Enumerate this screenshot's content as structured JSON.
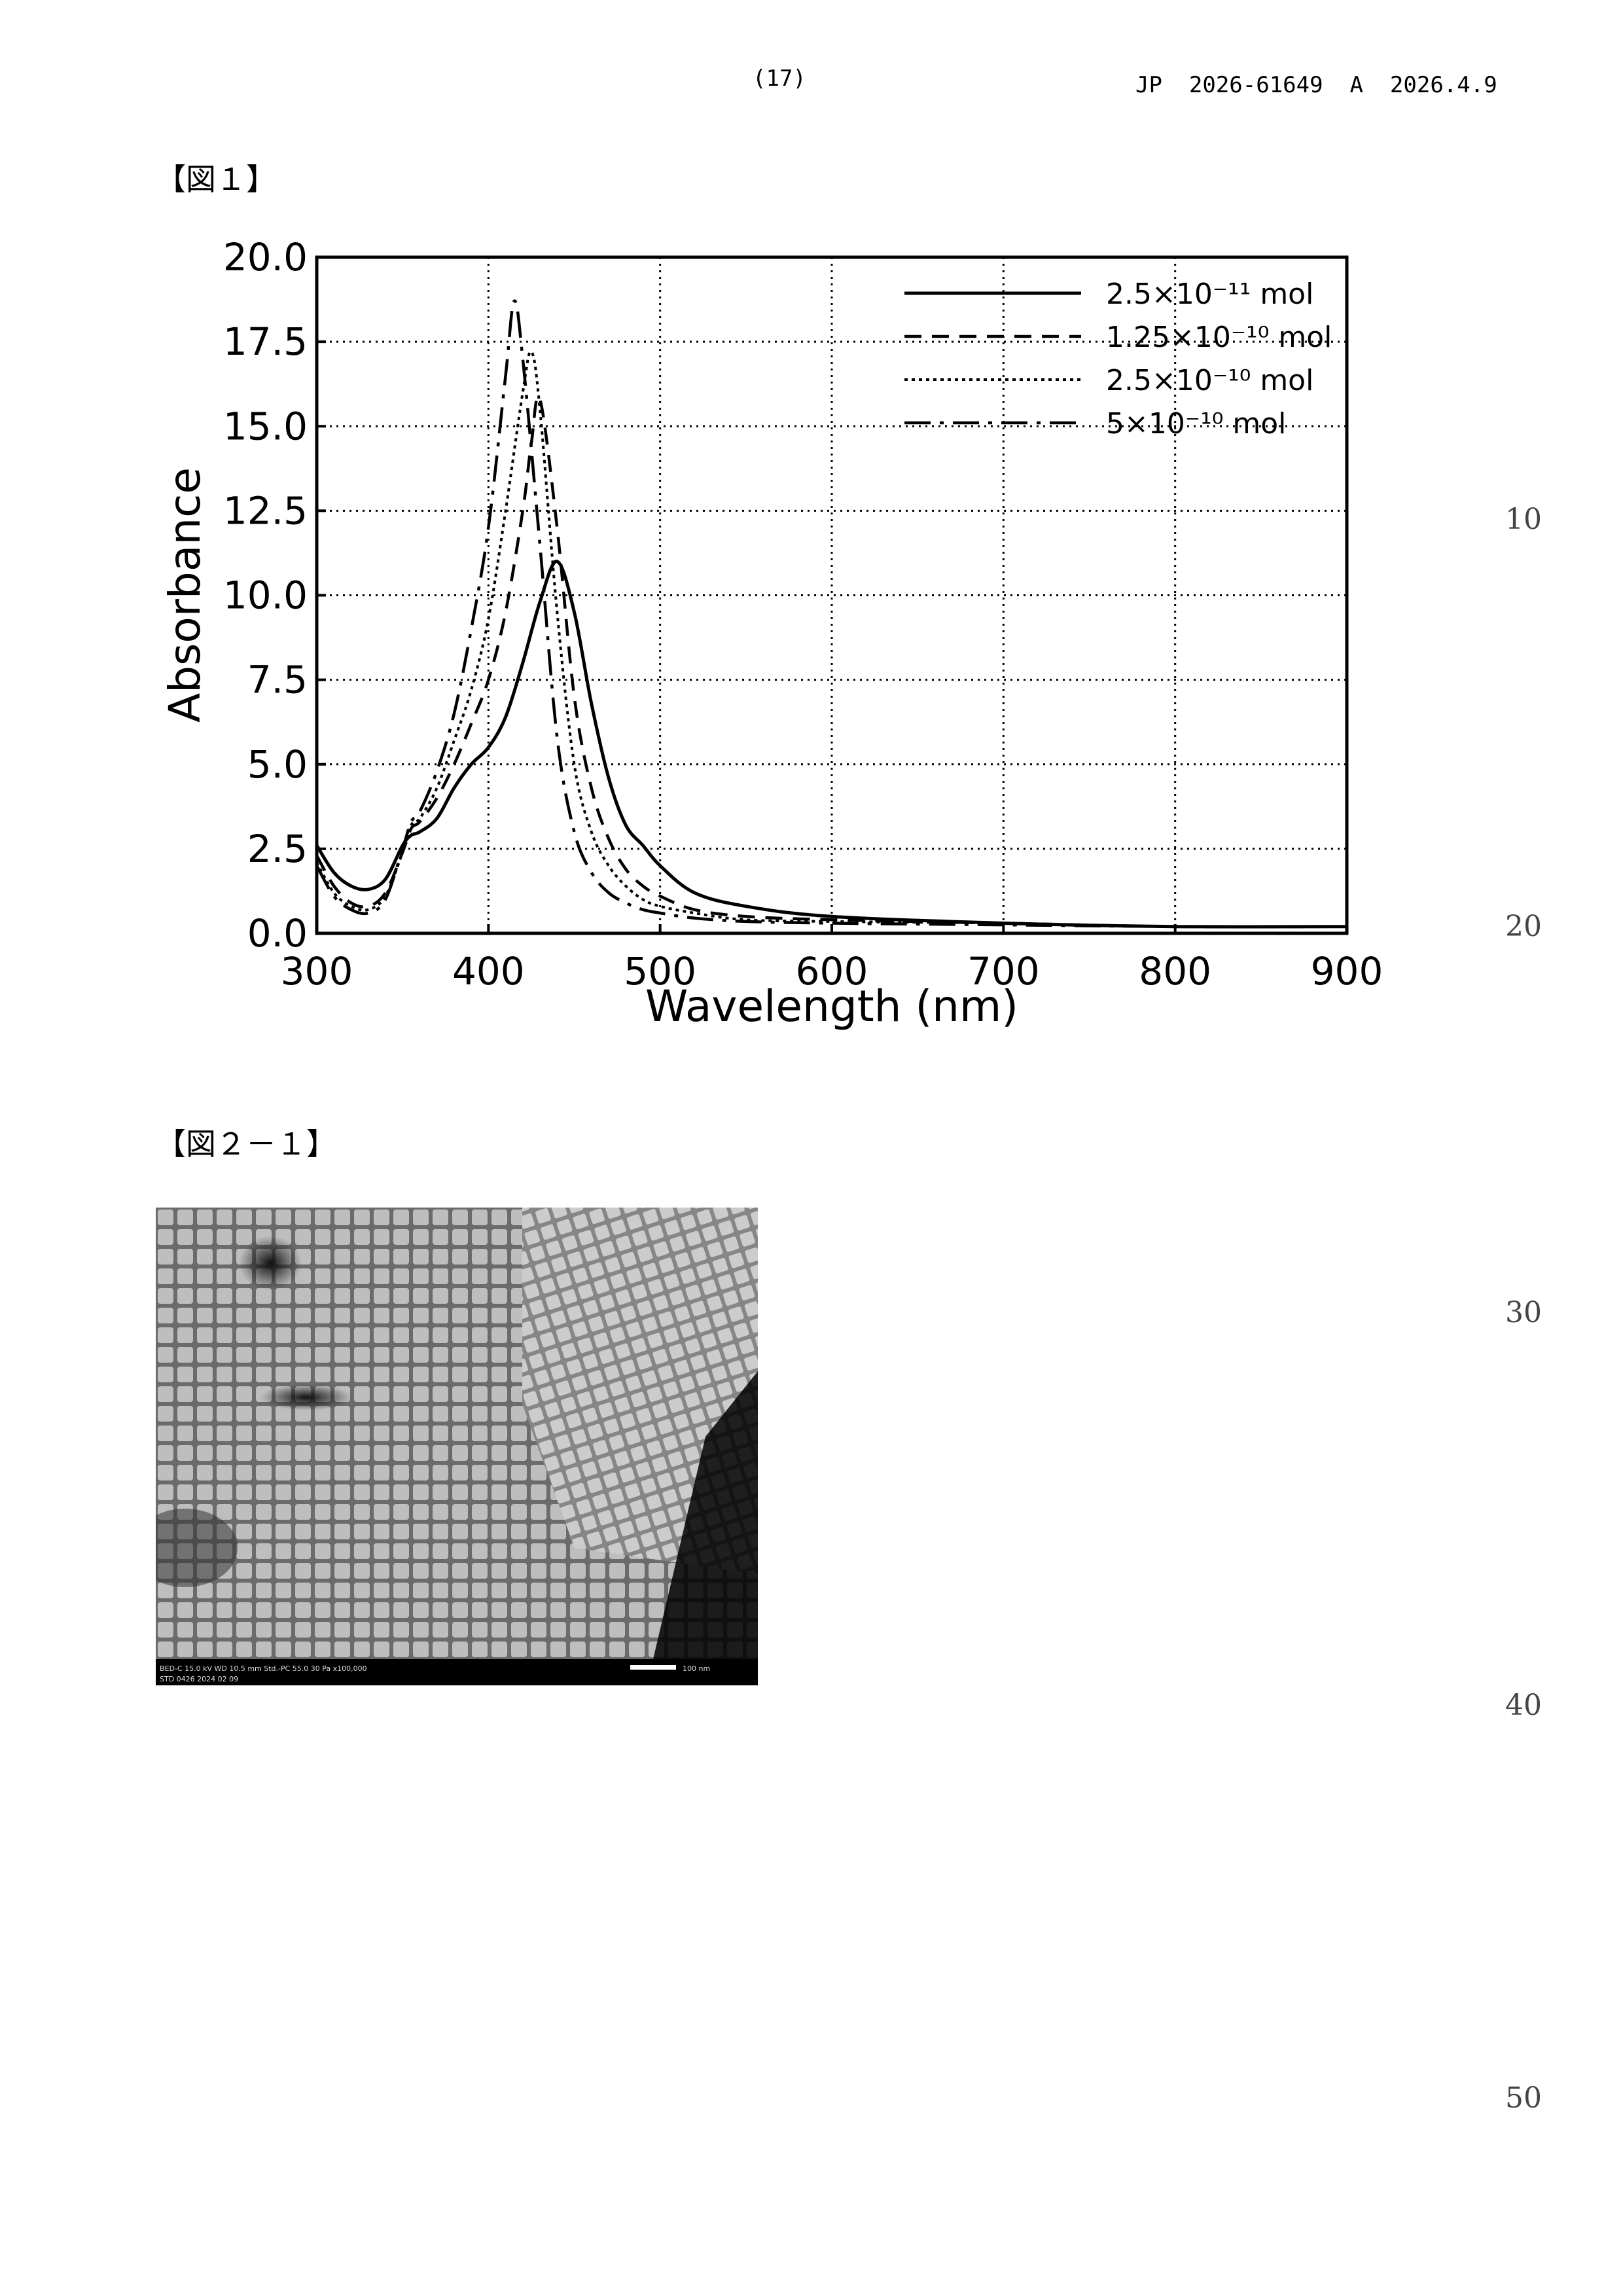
{
  "header": {
    "page_number": "(17)",
    "publication": "JP  2026-61649  A  2026.4.9"
  },
  "figure1": {
    "label": "【図１】"
  },
  "figure2": {
    "label": "【図２－１】",
    "sem_info_line1": "BED-C  15.0 kV  WD 10.5 mm   Std.-PC 55.0     30 Pa    x100,000",
    "sem_info_line2": "STD    0426    2024 02 09",
    "scale_label": "100 nm"
  },
  "line_numbers": [
    "10",
    "20",
    "30",
    "40",
    "50"
  ],
  "chart_data": {
    "type": "line",
    "title": "",
    "xlabel": "Wavelength (nm)",
    "ylabel": "Absorbance",
    "xlim": [
      300,
      900
    ],
    "ylim": [
      0,
      20
    ],
    "xticks": [
      300,
      400,
      500,
      600,
      700,
      800,
      900
    ],
    "yticks": [
      0,
      2.5,
      5,
      7.5,
      10,
      12.5,
      15,
      17.5,
      20
    ],
    "xtick_labels": [
      "300",
      "400",
      "500",
      "600",
      "700",
      "800",
      "900"
    ],
    "ytick_labels": [
      "0.0",
      "2.5",
      "5.0",
      "7.5",
      "10.0",
      "12.5",
      "15.0",
      "17.5",
      "20.0"
    ],
    "grid": true,
    "legend_position": "top-right",
    "series": [
      {
        "name": "2.5×10⁻¹¹ mol",
        "style": "solid",
        "x": [
          300,
          310,
          320,
          330,
          340,
          350,
          355,
          360,
          370,
          380,
          390,
          400,
          410,
          420,
          430,
          440,
          450,
          460,
          470,
          480,
          490,
          500,
          520,
          550,
          600,
          700,
          800,
          900
        ],
        "y": [
          2.6,
          1.8,
          1.4,
          1.3,
          1.6,
          2.6,
          2.9,
          3.0,
          3.4,
          4.3,
          5.0,
          5.5,
          6.4,
          8.0,
          9.8,
          11.0,
          9.5,
          6.8,
          4.6,
          3.2,
          2.6,
          2.0,
          1.2,
          0.8,
          0.5,
          0.3,
          0.2,
          0.2
        ]
      },
      {
        "name": "1.25×10⁻¹⁰ mol",
        "style": "dashed",
        "x": [
          300,
          310,
          320,
          330,
          340,
          350,
          355,
          360,
          370,
          380,
          390,
          400,
          410,
          420,
          425,
          430,
          440,
          450,
          460,
          470,
          480,
          490,
          500,
          520,
          550,
          600,
          700,
          800,
          900
        ],
        "y": [
          2.3,
          1.4,
          0.9,
          0.8,
          1.2,
          2.4,
          3.1,
          3.3,
          4.0,
          5.0,
          6.2,
          7.5,
          9.5,
          12.5,
          14.5,
          15.8,
          12.0,
          7.0,
          4.3,
          2.8,
          1.9,
          1.4,
          1.1,
          0.7,
          0.5,
          0.4,
          0.3,
          0.2,
          0.2
        ]
      },
      {
        "name": "2.5×10⁻¹⁰ mol",
        "style": "dotted",
        "x": [
          300,
          310,
          320,
          330,
          340,
          350,
          355,
          360,
          370,
          380,
          390,
          400,
          410,
          420,
          425,
          430,
          440,
          450,
          460,
          470,
          480,
          490,
          500,
          520,
          550,
          600,
          700,
          800,
          900
        ],
        "y": [
          2.1,
          1.2,
          0.8,
          0.7,
          1.1,
          2.4,
          3.2,
          3.4,
          4.3,
          5.7,
          7.2,
          9.3,
          12.5,
          16.0,
          17.2,
          15.5,
          9.5,
          5.0,
          3.0,
          2.0,
          1.4,
          1.0,
          0.8,
          0.6,
          0.4,
          0.35,
          0.3,
          0.2,
          0.2
        ]
      },
      {
        "name": "5×10⁻¹⁰ mol",
        "style": "dashdot",
        "x": [
          300,
          310,
          320,
          330,
          340,
          350,
          355,
          360,
          370,
          380,
          390,
          400,
          410,
          415,
          420,
          430,
          440,
          450,
          460,
          470,
          480,
          490,
          500,
          520,
          550,
          600,
          700,
          800,
          900
        ],
        "y": [
          2.0,
          1.1,
          0.7,
          0.6,
          1.0,
          2.5,
          3.3,
          3.6,
          4.8,
          6.5,
          9.0,
          12.0,
          16.5,
          18.7,
          17.0,
          11.5,
          5.8,
          3.0,
          1.8,
          1.2,
          0.9,
          0.7,
          0.6,
          0.45,
          0.35,
          0.3,
          0.25,
          0.2,
          0.2
        ]
      }
    ]
  }
}
